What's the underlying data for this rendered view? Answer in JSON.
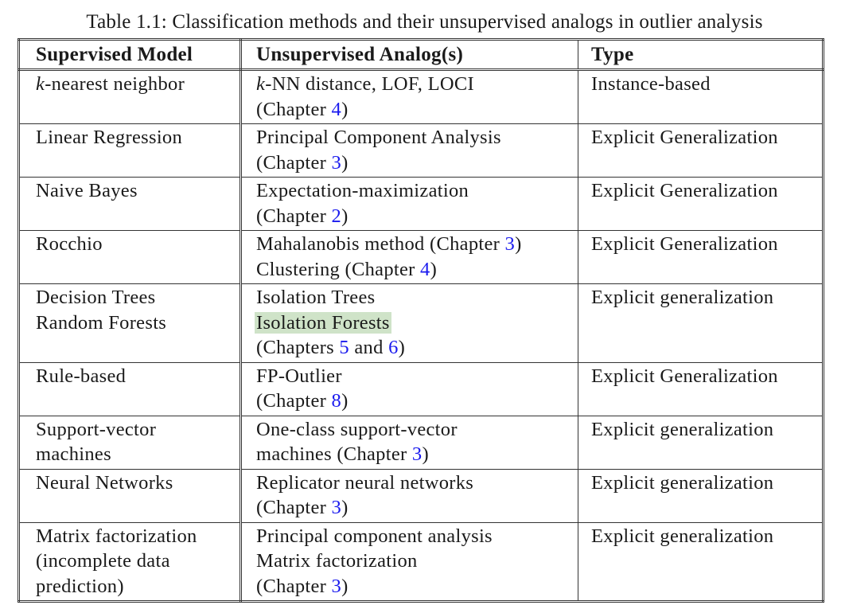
{
  "caption": "Table 1.1: Classification methods and their unsupervised analogs in outlier analysis",
  "headers": [
    "Supervised Model",
    "Unsupervised Analog(s)",
    "Type"
  ],
  "rows": [
    {
      "model": [
        {
          "pre": "",
          "italic": "k",
          "post": "-nearest neighbor"
        }
      ],
      "analog": [
        {
          "pre": "",
          "italic": "k",
          "post": "-NN distance, LOF, LOCI"
        },
        {
          "pre": "(Chapter ",
          "ref": "4",
          "post": ")"
        }
      ],
      "type": "Instance-based"
    },
    {
      "model": [
        {
          "pre": "Linear Regression"
        }
      ],
      "analog": [
        {
          "pre": "Principal Component Analysis"
        },
        {
          "pre": "(Chapter ",
          "ref": "3",
          "post": ")"
        }
      ],
      "type": "Explicit Generalization"
    },
    {
      "model": [
        {
          "pre": "Naive Bayes"
        }
      ],
      "analog": [
        {
          "pre": "Expectation-maximization"
        },
        {
          "pre": "(Chapter ",
          "ref": "2",
          "post": ")"
        }
      ],
      "type": "Explicit Generalization"
    },
    {
      "model": [
        {
          "pre": "Rocchio"
        }
      ],
      "analog": [
        {
          "pre": "Mahalanobis method (Chapter ",
          "ref": "3",
          "post": ")"
        },
        {
          "pre": "Clustering (Chapter ",
          "ref": "4",
          "post": ")"
        }
      ],
      "type": "Explicit Generalization"
    },
    {
      "model": [
        {
          "pre": "Decision Trees"
        },
        {
          "pre": "Random Forests"
        }
      ],
      "analog": [
        {
          "pre": "Isolation Trees"
        },
        {
          "highlight": "Isolation Forests"
        },
        {
          "pre": "(Chapters ",
          "ref": "5",
          "mid": " and ",
          "ref2": "6",
          "post": ")"
        }
      ],
      "type": "Explicit generalization"
    },
    {
      "model": [
        {
          "pre": "Rule-based"
        }
      ],
      "analog": [
        {
          "pre": "FP-Outlier"
        },
        {
          "pre": "(Chapter ",
          "ref": "8",
          "post": ")"
        }
      ],
      "type": "Explicit Generalization"
    },
    {
      "model": [
        {
          "pre": "Support-vector"
        },
        {
          "pre": "machines"
        }
      ],
      "analog": [
        {
          "pre": "One-class support-vector"
        },
        {
          "pre": "machines (Chapter ",
          "ref": "3",
          "post": ")"
        }
      ],
      "type": "Explicit generalization"
    },
    {
      "model": [
        {
          "pre": "Neural Networks"
        }
      ],
      "analog": [
        {
          "pre": "Replicator neural networks"
        },
        {
          "pre": "(Chapter ",
          "ref": "3",
          "post": ")"
        }
      ],
      "type": "Explicit generalization"
    },
    {
      "model": [
        {
          "pre": "Matrix factorization"
        },
        {
          "pre": "(incomplete data"
        },
        {
          "pre": "prediction)"
        }
      ],
      "analog": [
        {
          "pre": "Principal component analysis"
        },
        {
          "pre": "Matrix factorization"
        },
        {
          "pre": "(Chapter ",
          "ref": "3",
          "post": ")"
        }
      ],
      "type": "Explicit generalization"
    }
  ],
  "colors": {
    "text": "#1a1a1a",
    "link": "#1a1aee",
    "highlight": "#cfe3c8",
    "rule": "#333333"
  }
}
